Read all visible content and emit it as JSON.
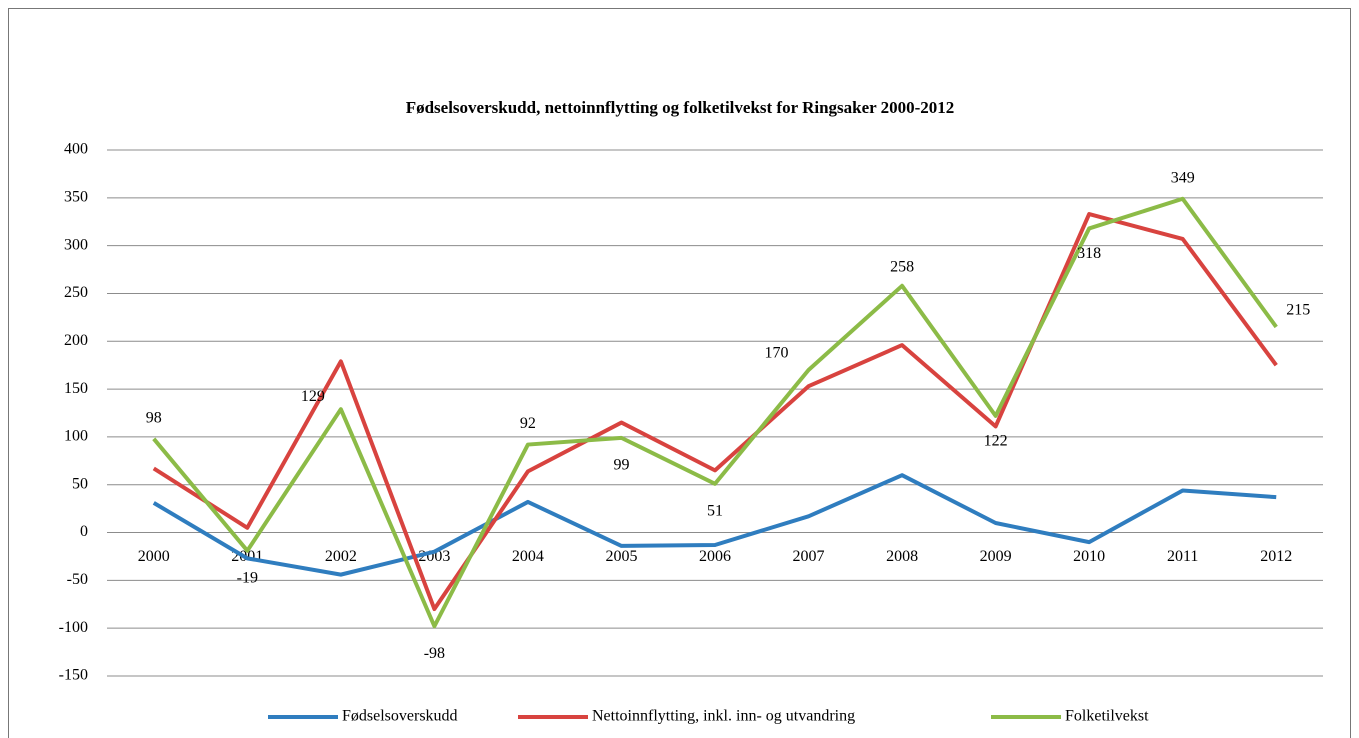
{
  "chart_data": {
    "type": "line",
    "title": "Fødselsoverskudd, nettoinnflytting og folketilvekst for Ringsaker 2000-2012",
    "categories": [
      "2000",
      "2001",
      "2002",
      "2003",
      "2004",
      "2005",
      "2006",
      "2007",
      "2008",
      "2009",
      "2010",
      "2011",
      "2012"
    ],
    "series": [
      {
        "name": "Fødselsoverskudd",
        "color": "#2f7dbf",
        "values": [
          31,
          -27,
          -44,
          -20,
          32,
          -14,
          -13,
          17,
          60,
          10,
          -10,
          44,
          37
        ]
      },
      {
        "name": "Nettoinnflytting, inkl. inn- og utvandring",
        "color": "#d8433f",
        "values": [
          67,
          5,
          179,
          -80,
          64,
          115,
          65,
          153,
          196,
          111,
          333,
          307,
          175
        ]
      },
      {
        "name": "Folketilvekst",
        "color": "#8cbb47",
        "values": [
          98,
          -19,
          129,
          -98,
          92,
          99,
          51,
          170,
          258,
          122,
          318,
          349,
          215
        ],
        "data_labels": true
      }
    ],
    "ylim": [
      -150,
      400
    ],
    "yticks": [
      -150,
      -100,
      -50,
      0,
      50,
      100,
      150,
      200,
      250,
      300,
      350,
      400
    ],
    "grid": true,
    "legend": "bottom"
  }
}
